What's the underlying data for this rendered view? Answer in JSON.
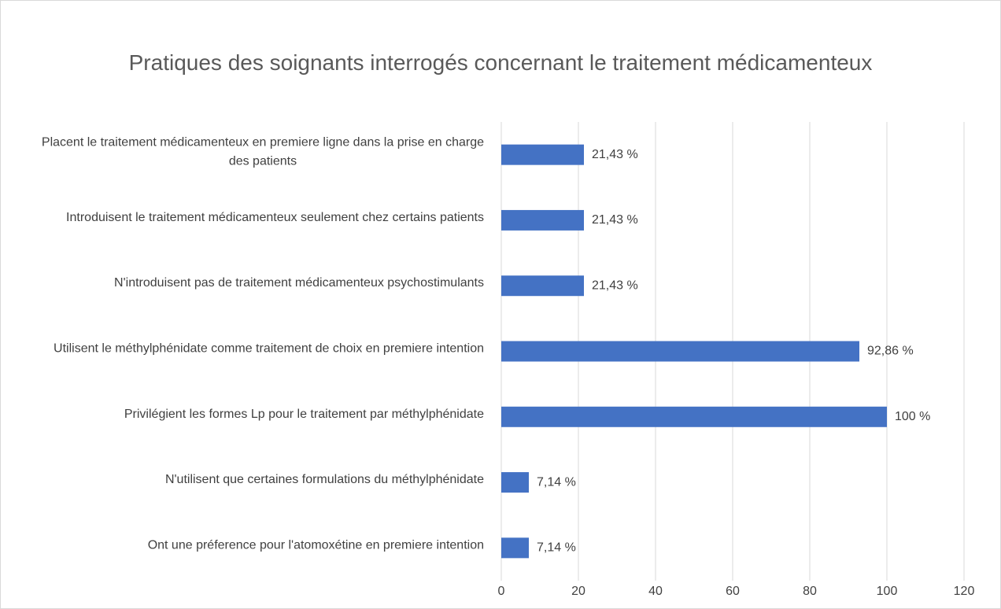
{
  "chart_data": {
    "type": "bar",
    "orientation": "horizontal",
    "title": "Pratiques des soignants interrogés concernant le traitement médicamenteux",
    "categories": [
      "Placent le traitement médicamenteux en premiere ligne dans la prise en charge des patients",
      "Introduisent le traitement médicamenteux seulement chez certains patients",
      "N'introduisent pas de traitement médicamenteux psychostimulants",
      "Utilisent le méthylphénidate comme traitement de choix en premiere intention",
      "Privilégient les formes Lp pour le traitement par méthylphénidate",
      "N'utilisent que certaines formulations du méthylphénidate",
      "Ont une préference pour l'atomoxétine en premiere intention"
    ],
    "values": [
      21.43,
      21.43,
      21.43,
      92.86,
      100,
      7.14,
      7.14
    ],
    "value_labels": [
      "21,43 %",
      "21,43 %",
      "21,43 %",
      "92,86 %",
      "100 %",
      "7,14 %",
      "7,14 %"
    ],
    "color": "#4472c4",
    "xlim": [
      0,
      120
    ],
    "xticks": [
      0,
      20,
      40,
      60,
      80,
      100,
      120
    ],
    "grid": true
  }
}
